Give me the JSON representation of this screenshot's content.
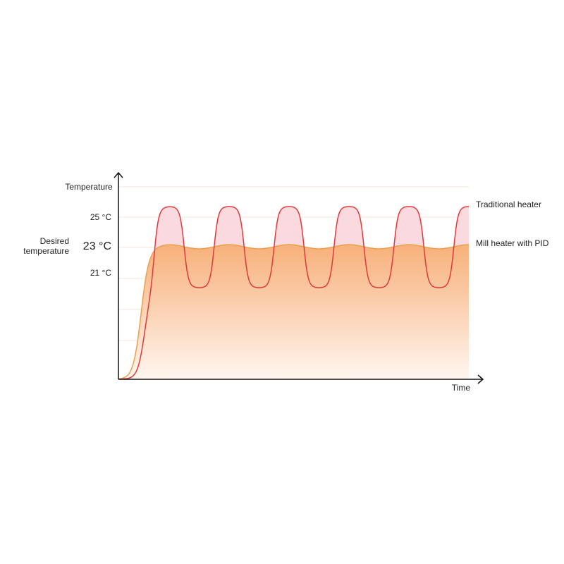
{
  "y_axis": {
    "title": "Temperature",
    "labels": [
      "25 °C",
      "23 °C",
      "21 °C"
    ],
    "desired": [
      "Desired",
      "temperature"
    ]
  },
  "x_axis": {
    "title": "Time"
  },
  "legend": [
    "Traditional heater",
    "Mill heater with PID"
  ]
}
